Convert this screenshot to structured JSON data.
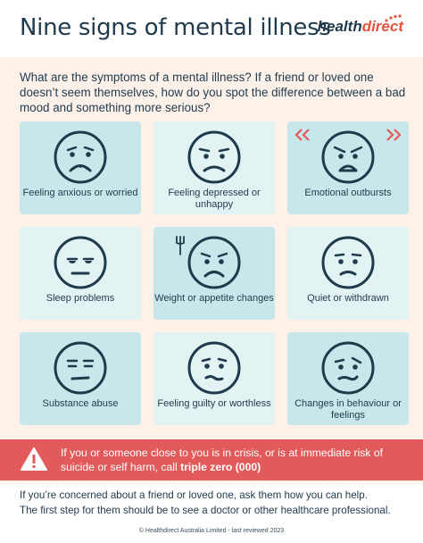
{
  "title": "Nine signs of mental illness",
  "logo": {
    "part1": "health",
    "part2": "direct"
  },
  "intro": "What are the symptoms of a mental illness? If a friend or loved one doesn’t seem themselves, how do you spot the difference between a bad mood and something more serious?",
  "signs": [
    {
      "label": "Feeling anxious or worried",
      "icon": "anxious-face-icon"
    },
    {
      "label": "Feeling depressed or unhappy",
      "icon": "sad-face-icon"
    },
    {
      "label": "Emotional outbursts",
      "icon": "angry-face-icon"
    },
    {
      "label": "Sleep problems",
      "icon": "tired-face-icon"
    },
    {
      "label": "Weight or appetite changes",
      "icon": "frowning-face-icon"
    },
    {
      "label": "Quiet or withdrawn",
      "icon": "withdrawn-face-icon"
    },
    {
      "label": "Substance abuse",
      "icon": "dazed-face-icon"
    },
    {
      "label": "Feeling guilty or worthless",
      "icon": "guilty-face-icon"
    },
    {
      "label": "Changes in behaviour or feelings",
      "icon": "confused-face-icon"
    }
  ],
  "alert": {
    "text": "If you or someone close to you is in crisis, or is at immediate risk of suicide or self harm, call ",
    "emphasis": "triple zero (000)"
  },
  "footer": {
    "line1": "If you’re concerned about a friend or loved one, ask them how you can help.",
    "line2": "The first step for them should be to see a doctor or other healthcare professional."
  },
  "copyright": "© Healthdirect Australia Limited - last reviewed 2023",
  "colors": {
    "navy": "#1f3a4d",
    "card_dark": "#c8e7ea",
    "card_light": "#e3f2f3",
    "alert": "#e35a5a",
    "background": "#fdf1ea",
    "accent": "#e0553f"
  }
}
